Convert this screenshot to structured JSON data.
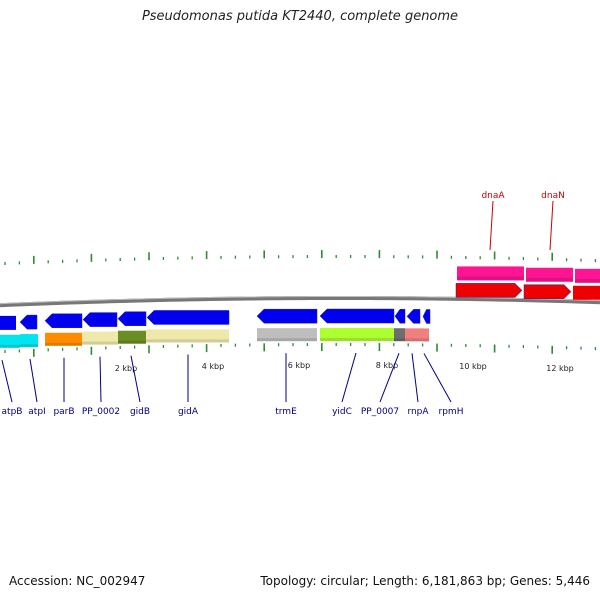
{
  "title": "Pseudomonas putida KT2440, complete genome",
  "footer": {
    "accession_label": "Accession:",
    "accession_value": "NC_002947",
    "topology": "Topology: circular; Length: 6,181,863 bp; Genes: 5,446"
  },
  "colors": {
    "backbone": "#777777",
    "forward_gene_label": "#cc0000",
    "reverse_gene_label": "#000080",
    "tick": "#2e8b2e"
  },
  "scale_labels": [
    "2 kbp",
    "4 kbp",
    "6 kbp",
    "8 kbp",
    "10 kbp",
    "12 kbp"
  ],
  "forward_genes": [
    {
      "name": "dnaA",
      "color": "#ff1493"
    },
    {
      "name": "dnaN",
      "color": "#ff1493"
    }
  ],
  "reverse_genes": [
    {
      "name": "atpB",
      "color": "#00e5ee"
    },
    {
      "name": "atpI",
      "color": "#00e5ee"
    },
    {
      "name": "parB",
      "color": "#ff8c00"
    },
    {
      "name": "PP_0002",
      "color": "#eee8aa"
    },
    {
      "name": "gidB",
      "color": "#6b8e23"
    },
    {
      "name": "gidA",
      "color": "#eee8aa"
    },
    {
      "name": "trmE",
      "color": "#bebebe"
    },
    {
      "name": "yidC",
      "color": "#adff2f"
    },
    {
      "name": "PP_0007",
      "color": "#6e6e6e"
    },
    {
      "name": "rnpA",
      "color": "#f08080"
    },
    {
      "name": "rpmH",
      "color": "#f08080"
    }
  ]
}
